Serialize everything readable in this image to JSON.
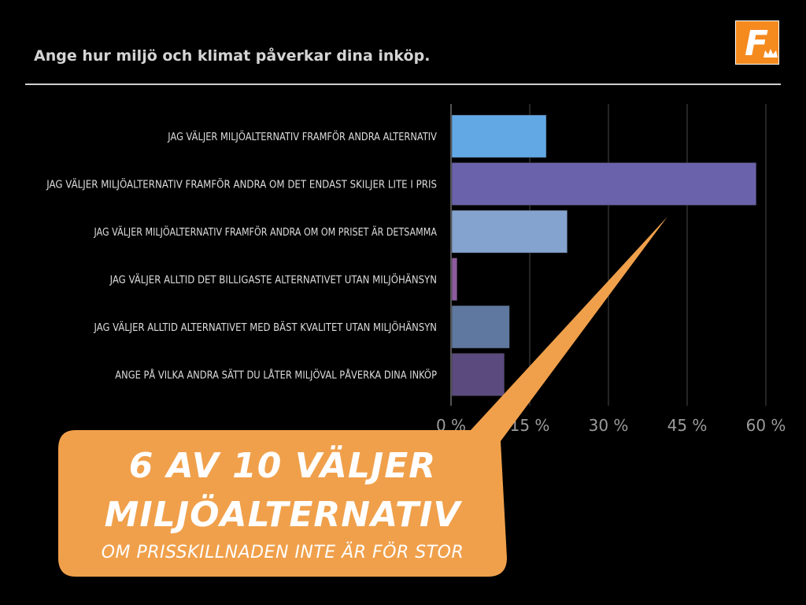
{
  "header": {
    "title": "Ange hur miljö och klimat påverkar dina inköp.",
    "logo_letter": "F",
    "logo_color": "#f58a1f"
  },
  "chart_data": {
    "type": "bar",
    "orientation": "horizontal",
    "categories": [
      "JAG VÄLJER MILJÖALTERNATIV FRAMFÖR ANDRA ALTERNATIV",
      "JAG VÄLJER MILJÖALTERNATIV FRAMFÖR ANDRA OM DET ENDAST SKILJER LITE I PRIS",
      "JAG VÄLJER MILJÖALTERNATIV FRAMFÖR ANDRA OM OM PRISET ÄR DETSAMMA",
      "JAG VÄLJER ALLTID DET BILLIGASTE ALTERNATIVET UTAN MILJÖHÄNSYN",
      "JAG VÄLJER ALLTID ALTERNATIVET MED BÄST KVALITET UTAN MILJÖHÄNSYN",
      "ANGE PÅ VILKA ANDRA SÄTT DU LÅTER MILJÖVAL PÅVERKA DINA INKÖP"
    ],
    "values": [
      18,
      58,
      22,
      1,
      11,
      10
    ],
    "colors": [
      "#62a8e5",
      "#6b62ac",
      "#84a3cf",
      "#8c5a9d",
      "#5f789f",
      "#5b4a7e"
    ],
    "xlim": [
      0,
      60
    ],
    "ticks": [
      0,
      15,
      30,
      45,
      60
    ],
    "tick_labels": [
      "0 %",
      "15 %",
      "30 %",
      "45 %",
      "60 %"
    ],
    "grid": true,
    "title": "",
    "xlabel": "",
    "ylabel": ""
  },
  "callout": {
    "line1": "6 AV 10 VÄLJER",
    "line2": "MILJÖALTERNATIV",
    "line3": "OM PRISSKILLNADEN INTE ÄR FÖR STOR",
    "color": "#f0a04b"
  }
}
